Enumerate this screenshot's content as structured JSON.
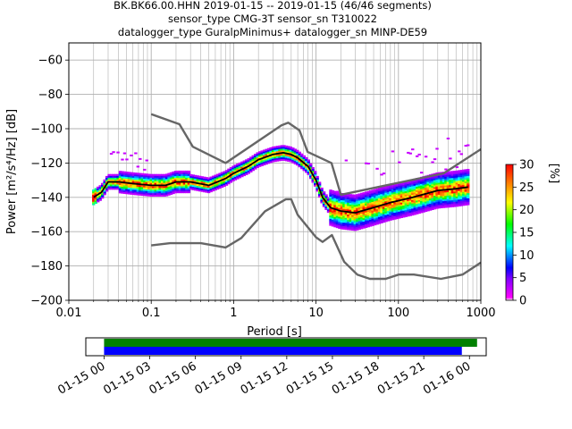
{
  "title": {
    "line1": "BK.BK66.00.HHN   2019-01-15 -- 2019-01-15  (46/46 segments)",
    "line2": "sensor_type CMG-3T sensor_sn T310022",
    "line3": "datalogger_type GuralpMinimus+ datalogger_sn MINP-DE59"
  },
  "chart_data": [
    {
      "type": "heatmap",
      "xlabel": "Period [s]",
      "ylabel": "Power [m²/s⁴/Hz] [dB]",
      "xscale": "log",
      "xlim": [
        0.01,
        1000
      ],
      "ylim": [
        -200,
        -50
      ],
      "x_tick_labels": [
        "0.01",
        "0.1",
        "1",
        "10",
        "100",
        "1000"
      ],
      "y_ticks": [
        -60,
        -80,
        -100,
        -120,
        -140,
        -160,
        -180,
        -200
      ],
      "grid": true,
      "noise_model_high": {
        "x": [
          0.1,
          0.22,
          0.32,
          0.8,
          3.8,
          4.6,
          6.3,
          7.9,
          15.4,
          20,
          354.8,
          1000
        ],
        "y": [
          -91.5,
          -97.4,
          -110.5,
          -120,
          -98,
          -96.5,
          -101,
          -113.5,
          -120,
          -138.5,
          -126,
          -112
        ]
      },
      "noise_model_low": {
        "x": [
          0.1,
          0.17,
          0.4,
          0.8,
          1.24,
          2.4,
          4.3,
          5,
          6,
          10,
          12,
          15.6,
          21.9,
          31.6,
          45,
          70,
          101,
          154,
          328,
          600,
          1000
        ],
        "y": [
          -168,
          -166.7,
          -166.7,
          -169.2,
          -163.7,
          -148.1,
          -141.1,
          -141.1,
          -150.2,
          -163.3,
          -166,
          -162,
          -177.5,
          -185,
          -187.5,
          -187.5,
          -185,
          -185,
          -187.5,
          -185,
          -178
        ]
      },
      "mode_line": {
        "x": [
          0.02,
          0.025,
          0.03,
          0.04,
          0.06,
          0.1,
          0.15,
          0.2,
          0.3,
          0.5,
          0.8,
          1,
          1.5,
          2,
          3,
          4,
          5,
          6,
          8,
          10,
          12,
          15,
          20,
          30,
          50,
          80,
          150,
          300,
          500,
          700
        ],
        "y": [
          -140,
          -137,
          -131,
          -131,
          -132,
          -133,
          -133,
          -131,
          -131,
          -133,
          -129,
          -126,
          -122,
          -118,
          -115,
          -114,
          -115,
          -117,
          -122,
          -130,
          -140,
          -146,
          -148,
          -149,
          -146,
          -143,
          -140,
          -136,
          -135,
          -134
        ]
      },
      "colorbar": {
        "label": "[%]",
        "ticks": [
          0,
          5,
          10,
          15,
          20,
          25,
          30
        ],
        "range": [
          0,
          30
        ]
      }
    },
    {
      "type": "timeline",
      "tick_labels": [
        "01-15 00",
        "01-15 03",
        "01-15 06",
        "01-15 09",
        "01-15 12",
        "01-15 15",
        "01-15 18",
        "01-15 21",
        "01-16 00"
      ],
      "xlim_hours": [
        -1.2,
        25.1
      ],
      "bars": [
        {
          "name": "green",
          "start_hour": 0,
          "end_hour": 24.5,
          "color": "#008000"
        },
        {
          "name": "blue",
          "start_hour": 0,
          "end_hour": 23.5,
          "color": "#0000ff"
        }
      ]
    }
  ]
}
